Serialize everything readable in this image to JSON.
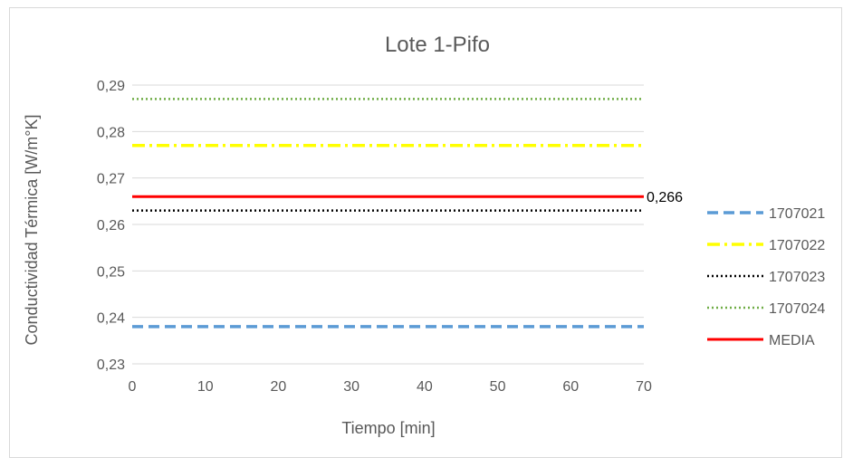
{
  "chart_data": {
    "type": "line",
    "title": "Lote 1-Pifo",
    "xlabel": "Tiempo [min]",
    "ylabel": "Conductividad Térmica [W/m°K]",
    "xlim": [
      0,
      70
    ],
    "ylim": [
      0.23,
      0.29
    ],
    "x_ticks": [
      0,
      10,
      20,
      30,
      40,
      50,
      60,
      70
    ],
    "y_ticks": [
      0.23,
      0.24,
      0.25,
      0.26,
      0.27,
      0.28,
      0.29
    ],
    "x_tick_labels": [
      "0",
      "10",
      "20",
      "30",
      "40",
      "50",
      "60",
      "70"
    ],
    "y_tick_labels": [
      "0,23",
      "0,24",
      "0,25",
      "0,26",
      "0,27",
      "0,28",
      "0,29"
    ],
    "grid": "horizontal",
    "legend": "right",
    "series": [
      {
        "name": "1707021",
        "x": [
          0,
          70
        ],
        "values": [
          0.238,
          0.238
        ],
        "color": "#5b9bd5",
        "style": "dashed"
      },
      {
        "name": "1707022",
        "x": [
          0,
          70
        ],
        "values": [
          0.277,
          0.277
        ],
        "color": "#ffff00",
        "style": "dash-dot"
      },
      {
        "name": "1707023",
        "x": [
          0,
          70
        ],
        "values": [
          0.263,
          0.263
        ],
        "color": "#000000",
        "style": "dotted"
      },
      {
        "name": "1707024",
        "x": [
          0,
          70
        ],
        "values": [
          0.287,
          0.287
        ],
        "color": "#70ad47",
        "style": "dotted"
      },
      {
        "name": "MEDIA",
        "x": [
          0,
          70
        ],
        "values": [
          0.266,
          0.266
        ],
        "color": "#ff0000",
        "style": "solid"
      }
    ],
    "annotations": [
      {
        "series": "MEDIA",
        "text": "0,266",
        "x": 70,
        "y": 0.266
      }
    ]
  }
}
